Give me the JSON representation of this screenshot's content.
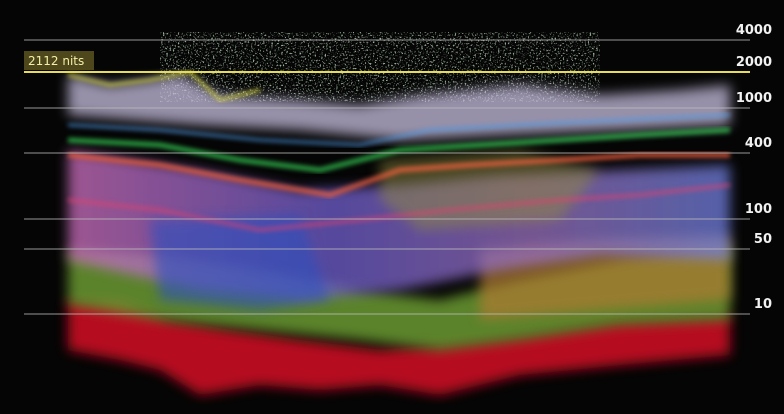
{
  "scale": {
    "ticks": [
      "4000",
      "2000",
      "1000",
      "400",
      "100",
      "50",
      "10"
    ]
  },
  "marker": {
    "label": "2112 nits"
  }
}
